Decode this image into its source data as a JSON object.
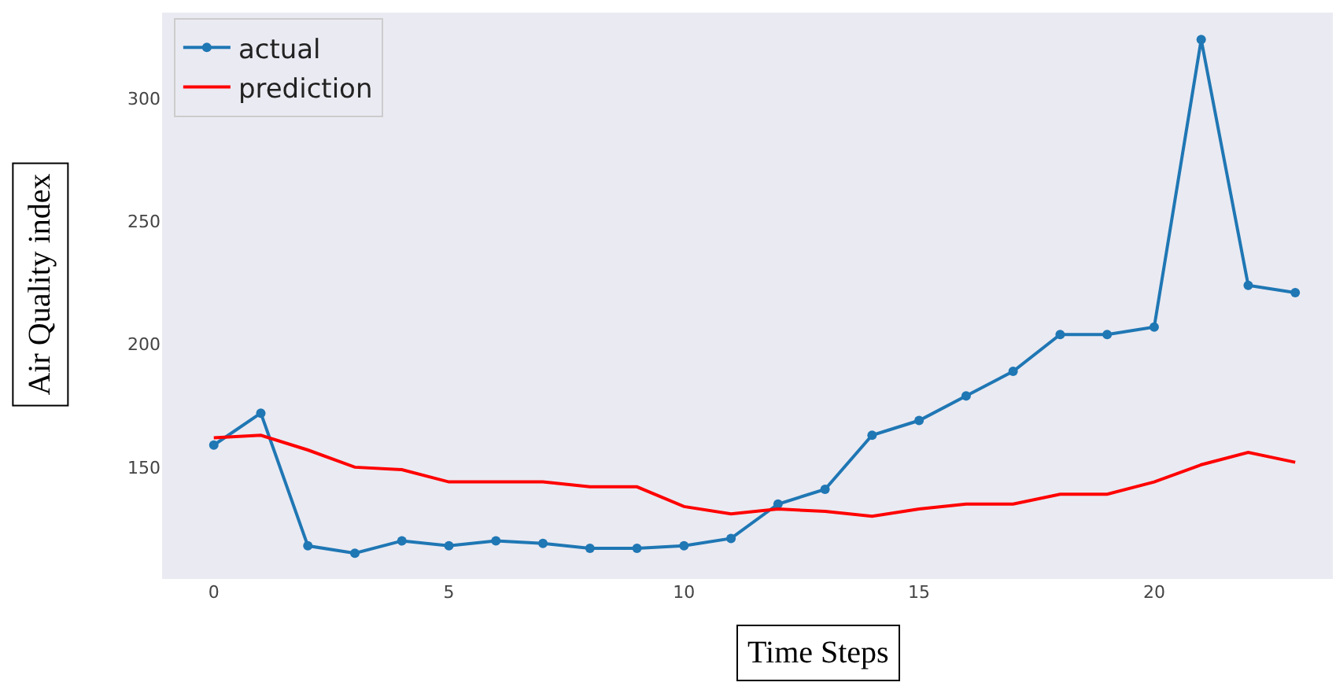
{
  "chart_data": {
    "type": "line",
    "xlabel": "Time Steps",
    "ylabel": "Air Quality index",
    "x": [
      0,
      1,
      2,
      3,
      4,
      5,
      6,
      7,
      8,
      9,
      10,
      11,
      12,
      13,
      14,
      15,
      16,
      17,
      18,
      19,
      20,
      21,
      22,
      23
    ],
    "series": [
      {
        "name": "actual",
        "color": "#1f77b4",
        "marker": "circle",
        "values": [
          159,
          172,
          118,
          115,
          120,
          118,
          120,
          119,
          117,
          117,
          118,
          121,
          135,
          141,
          163,
          169,
          179,
          189,
          204,
          204,
          207,
          324,
          224,
          221
        ]
      },
      {
        "name": "prediction",
        "color": "#ff0000",
        "marker": "none",
        "values": [
          162,
          163,
          157,
          150,
          149,
          144,
          144,
          144,
          142,
          142,
          134,
          131,
          133,
          132,
          130,
          133,
          135,
          135,
          139,
          139,
          144,
          151,
          156,
          152
        ]
      }
    ],
    "xlim": [
      -1.1,
      23.8
    ],
    "ylim": [
      104.5,
      335
    ],
    "xticks": [
      0,
      5,
      10,
      15,
      20
    ],
    "yticks": [
      150,
      200,
      250,
      300
    ],
    "grid": false,
    "legend": "top left"
  }
}
